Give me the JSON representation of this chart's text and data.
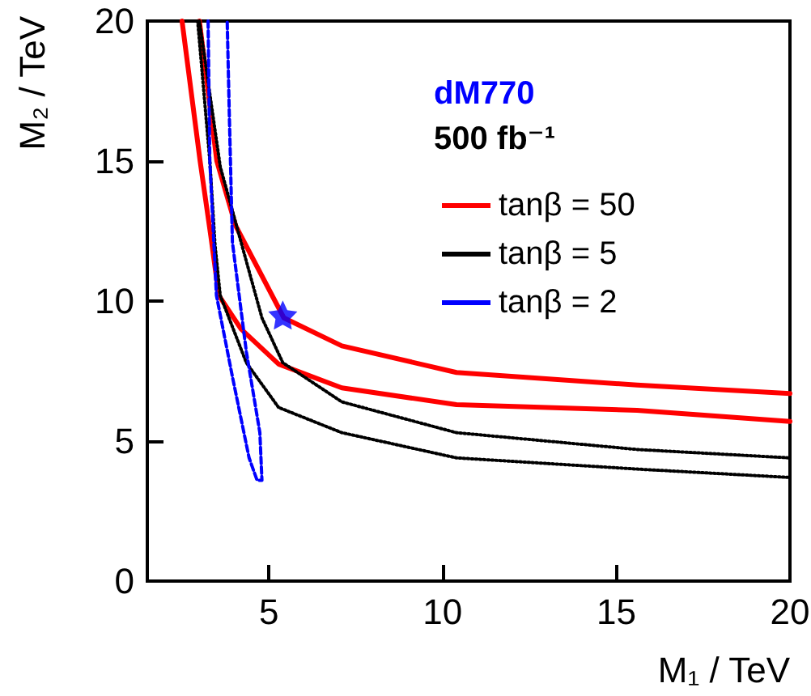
{
  "chart_data": {
    "type": "line",
    "xlabel": "M₁ / TeV",
    "ylabel": "M₂ / TeV",
    "annotations": [
      "dM770",
      "500 fb⁻¹"
    ],
    "xlim": [
      1.5,
      20
    ],
    "xticks": [
      5,
      10,
      15,
      20
    ],
    "ylim": [
      0,
      20
    ],
    "yticks": [
      0,
      5,
      10,
      15,
      20
    ],
    "grid": false,
    "legend": "top right",
    "marker": "none",
    "series": [
      {
        "name": "tanβ = 50",
        "color": "#ff0000",
        "line_style": "solid",
        "x": [
          3.0,
          3.5,
          4.04,
          5.43,
          7.1,
          10.4,
          15.6,
          20
        ],
        "values": [
          20,
          15.0,
          12.7,
          9.4,
          8.4,
          7.45,
          7.0,
          6.7
        ]
      },
      {
        "color": "#ff0000",
        "line_style": "solid",
        "x": [
          2.5,
          3.02,
          3.33,
          3.56,
          4.2,
          5.28,
          7.1,
          10.4,
          15.6,
          20
        ],
        "values": [
          20,
          15.0,
          12.3,
          10.2,
          9.0,
          7.75,
          6.9,
          6.3,
          6.1,
          5.7
        ]
      },
      {
        "name": "tanβ = 5",
        "color": "#000000",
        "line_style": "dotted",
        "x": [
          3.0,
          3.6,
          4.2,
          4.8,
          5.4,
          7.1,
          10.4,
          15.6,
          20
        ],
        "values": [
          20,
          14.8,
          12.1,
          9.4,
          7.8,
          6.4,
          5.3,
          4.7,
          4.4
        ]
      },
      {
        "color": "#000000",
        "line_style": "dotted",
        "x": [
          2.95,
          3.3,
          3.45,
          3.6,
          4.35,
          5.28,
          7.1,
          10.4,
          15.6,
          20
        ],
        "values": [
          20,
          15,
          12,
          10.2,
          7.8,
          6.2,
          5.3,
          4.4,
          4.0,
          3.7
        ]
      },
      {
        "name": "tanβ = 2",
        "color": "#0000ff",
        "line_style": "dashed",
        "x": [
          3.25,
          3.3,
          3.49,
          3.95,
          4.43,
          4.66,
          4.8,
          4.74,
          4.35,
          3.95,
          3.86,
          3.8
        ],
        "values": [
          20,
          15,
          10.2,
          7.3,
          4.4,
          3.6,
          3.6,
          5.3,
          8.2,
          12.1,
          16.7,
          20
        ]
      },
      {
        "type": "scatter",
        "marker": "star",
        "color": "#0000ff",
        "x": [
          5.4
        ],
        "values": [
          9.5
        ]
      }
    ]
  }
}
